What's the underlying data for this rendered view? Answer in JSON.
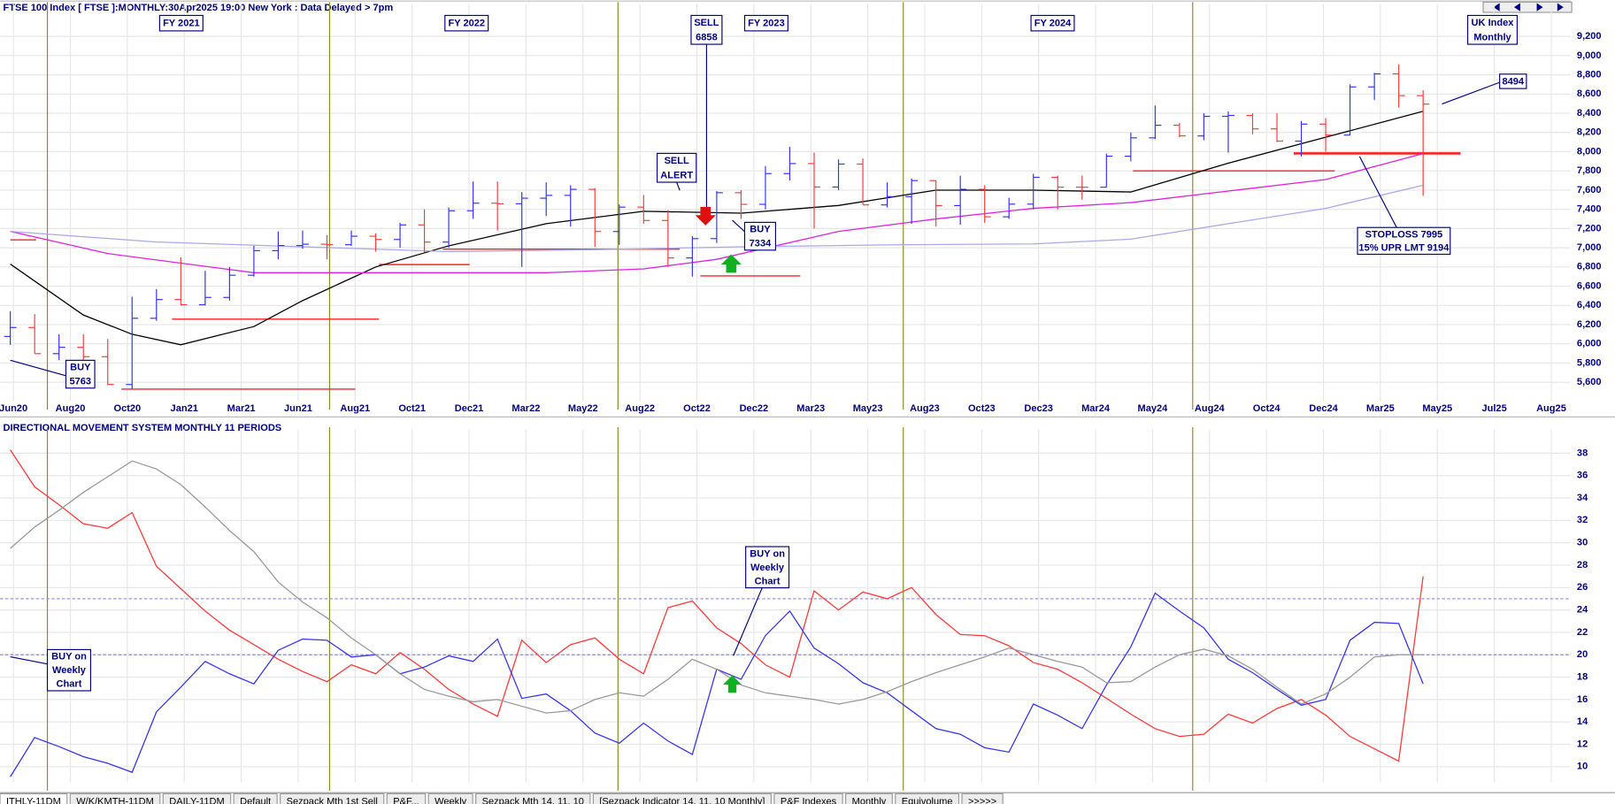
{
  "tabs": [
    "ITHLY-11DM",
    "W/K/KMTH-11DM",
    "DAILY-11DM",
    "Default",
    "Sezpack Mth 1st Sell",
    "P&F...",
    "Weekly",
    "Sezpack Mth 14, 11, 10",
    "[Sezpack Indicator 14, 11, 10 Monthly]",
    "P&F Indexes",
    "Monthly",
    "Equivolume",
    ">>>>>"
  ],
  "chart_data": [
    {
      "type": "ohlc",
      "title": "FTSE 100 Index [ FTSE ]:MONTHLY:30Apr2025 19:00 New York : Data Delayed > 7pm",
      "open": [
        6077,
        6170,
        5898,
        5964,
        5866,
        5577,
        6266,
        6461,
        6407,
        6483,
        6714,
        6970,
        7023,
        7037,
        7032,
        7120,
        7086,
        7238,
        7059,
        7385,
        7464,
        7458,
        7516,
        7545,
        7608,
        7169,
        7423,
        7284,
        6894,
        7095,
        7573,
        7452,
        7772,
        7876,
        7632,
        7871,
        7446,
        7532,
        7699,
        7439,
        7608,
        7322,
        7454,
        7733,
        7631,
        7630,
        7953,
        8144,
        8275,
        8164,
        8368,
        8377,
        8237,
        8110,
        8287,
        8173,
        8674,
        8810,
        8583
      ],
      "high": [
        6340,
        6310,
        6100,
        6100,
        6050,
        6490,
        6570,
        6900,
        6760,
        6800,
        7020,
        7170,
        7180,
        7130,
        7180,
        7150,
        7260,
        7400,
        7420,
        7690,
        7690,
        7580,
        7680,
        7650,
        7620,
        7450,
        7550,
        7390,
        7120,
        7590,
        7600,
        7850,
        8050,
        7990,
        7920,
        7930,
        7680,
        7720,
        7700,
        7750,
        7650,
        7520,
        7770,
        7750,
        7750,
        7980,
        8200,
        8480,
        8300,
        8400,
        8420,
        8400,
        8400,
        8320,
        8350,
        8700,
        8820,
        8910,
        8640
      ],
      "low": [
        5990,
        5900,
        5830,
        5770,
        5570,
        5530,
        6240,
        6400,
        6400,
        6450,
        6700,
        6880,
        6990,
        6880,
        7020,
        6960,
        7000,
        6950,
        7000,
        7300,
        7180,
        6800,
        7330,
        7220,
        7010,
        7030,
        7250,
        6800,
        6700,
        7050,
        7300,
        7400,
        7700,
        7200,
        7600,
        7450,
        7420,
        7250,
        7220,
        7240,
        7260,
        7300,
        7400,
        7400,
        7500,
        7630,
        7900,
        8130,
        8150,
        8120,
        7990,
        8180,
        8100,
        7950,
        8000,
        8170,
        8540,
        8460,
        7540
      ],
      "close": [
        6170,
        5898,
        5964,
        5866,
        5577,
        6266,
        6461,
        6407,
        6483,
        6714,
        6970,
        7023,
        7037,
        7032,
        7120,
        7086,
        7238,
        7059,
        7385,
        7464,
        7458,
        7516,
        7545,
        7608,
        7169,
        7423,
        7284,
        6894,
        7095,
        7573,
        7452,
        7772,
        7876,
        7632,
        7871,
        7446,
        7532,
        7699,
        7439,
        7608,
        7322,
        7454,
        7733,
        7631,
        7630,
        7953,
        8144,
        8275,
        8164,
        8368,
        8377,
        8237,
        8110,
        8287,
        8173,
        8674,
        8810,
        8583,
        8495
      ],
      "up_color": "#3030ff",
      "down_color": "#ff3838",
      "series": [
        {
          "color": "#000000",
          "x": [
            0,
            3,
            5,
            7,
            10,
            12,
            15,
            18,
            22,
            26,
            30,
            34,
            38,
            42,
            46,
            50,
            54,
            58
          ],
          "values": [
            6830,
            6300,
            6100,
            5990,
            6180,
            6450,
            6800,
            7020,
            7250,
            7380,
            7360,
            7440,
            7600,
            7600,
            7580,
            7880,
            8150,
            8420
          ]
        },
        {
          "color": "#e020e0",
          "x": [
            0,
            4,
            10,
            16,
            22,
            26,
            29,
            34,
            38,
            42,
            46,
            50,
            54,
            58
          ],
          "values": [
            7170,
            6940,
            6740,
            6740,
            6740,
            6780,
            6880,
            7170,
            7300,
            7410,
            7470,
            7590,
            7710,
            7980
          ]
        },
        {
          "color": "#a8a8ec",
          "x": [
            0,
            6,
            12,
            18,
            24,
            30,
            36,
            42,
            46,
            50,
            54,
            58
          ],
          "values": [
            7170,
            7060,
            7010,
            6960,
            6980,
            7010,
            7030,
            7040,
            7090,
            7250,
            7410,
            7650
          ]
        }
      ],
      "x_labels": [
        "Jun20",
        "Aug20",
        "Oct20",
        "Jan21",
        "Mar21",
        "Jun21",
        "Aug21",
        "Oct21",
        "Dec21",
        "Mar22",
        "May22",
        "Aug22",
        "Oct22",
        "Dec22",
        "Mar23",
        "May23",
        "Aug23",
        "Oct23",
        "Dec23",
        "Mar24",
        "May24",
        "Aug24",
        "Oct24",
        "Dec24",
        "Mar25",
        "May25",
        "Jul25",
        "Aug25"
      ],
      "ylim": [
        5400,
        9450
      ],
      "yticks": [
        {
          "value": 5600,
          "label": "5,600"
        },
        {
          "value": 5800,
          "label": "5,800"
        },
        {
          "value": 6000,
          "label": "6,000"
        },
        {
          "value": 6200,
          "label": "6,200"
        },
        {
          "value": 6400,
          "label": "6,400"
        },
        {
          "value": 6600,
          "label": "6,600"
        },
        {
          "value": 6800,
          "label": "6,800"
        },
        {
          "value": 7000,
          "label": "7,000"
        },
        {
          "value": 7200,
          "label": "7,200"
        },
        {
          "value": 7400,
          "label": "7,400"
        },
        {
          "value": 7600,
          "label": "7,600"
        },
        {
          "value": 7800,
          "label": "7,800"
        },
        {
          "value": 8000,
          "label": "8,000"
        },
        {
          "value": 8200,
          "label": "8,200"
        },
        {
          "value": 8400,
          "label": "8,400"
        },
        {
          "value": 8600,
          "label": "8,600"
        },
        {
          "value": 8800,
          "label": "8,800"
        },
        {
          "value": 9000,
          "label": "9,000"
        },
        {
          "value": 9200,
          "label": "9,200"
        }
      ],
      "grid": true,
      "annotations": [
        [
          "FY 2021"
        ],
        [
          "FY 2022"
        ],
        [
          "SELL",
          "6858"
        ],
        [
          "FY 2023"
        ],
        [
          "FY 2024"
        ],
        [
          "UK Index",
          "Monthly"
        ],
        [
          "SELL",
          "ALERT"
        ],
        [
          "BUY",
          "7334"
        ],
        [
          "BUY",
          "5763"
        ],
        [
          "8494"
        ],
        [
          "STOPLOSS 7995",
          "15% UPR LMT 9194"
        ]
      ]
    },
    {
      "type": "line",
      "title": "DIRECTIONAL MOVEMENT SYSTEM MONTHLY 11 PERIODS",
      "series": [
        {
          "color": "#ff3838",
          "values": [
            38.3,
            35,
            33.4,
            31.7,
            31.3,
            32.7,
            27.9,
            25.9,
            23.9,
            22.2,
            20.9,
            19.6,
            18.5,
            17.6,
            19.1,
            18.3,
            20.2,
            18.7,
            16.9,
            15.6,
            14.5,
            21.3,
            19.3,
            20.9,
            21.5,
            19.6,
            18.3,
            24.2,
            24.8,
            22.4,
            21,
            19.1,
            18,
            25.7,
            24,
            25.6,
            25,
            26,
            23.6,
            21.8,
            21.7,
            20.8,
            19.3,
            18.7,
            17.5,
            16.1,
            14.7,
            13.4,
            12.7,
            12.9,
            14.7,
            13.9,
            15.2,
            16,
            14.6,
            12.7,
            11.6,
            10.5,
            27
          ]
        },
        {
          "color": "#3434ee",
          "values": [
            9.1,
            12.6,
            11.8,
            10.9,
            10.3,
            9.5,
            14.9,
            17.1,
            19.4,
            18.3,
            17.4,
            20.4,
            21.4,
            21.3,
            19.8,
            20,
            18.3,
            18.9,
            19.9,
            19.4,
            21.4,
            16.1,
            16.5,
            15,
            13,
            12.1,
            13.9,
            12.3,
            11.1,
            18.7,
            17.8,
            21.7,
            23.9,
            20.6,
            19.2,
            17.5,
            16.6,
            15,
            13.4,
            12.9,
            11.7,
            11.3,
            15.6,
            14.6,
            13.4,
            17.3,
            20.7,
            25.5,
            23.9,
            22.4,
            19.6,
            18.4,
            16.9,
            15.5,
            16,
            21.3,
            22.9,
            22.8,
            17.4
          ]
        },
        {
          "color": "#999999",
          "values": [
            29.5,
            31.4,
            32.9,
            34.5,
            35.9,
            37.3,
            36.6,
            35.2,
            33.2,
            31.1,
            29.2,
            26.5,
            24.7,
            23.3,
            21.5,
            20,
            18.3,
            16.9,
            16.3,
            15.8,
            16,
            15.4,
            14.8,
            15,
            16,
            16.6,
            16.3,
            17.8,
            19.6,
            18.7,
            17.3,
            16.6,
            16.3,
            16,
            15.6,
            16,
            16.7,
            17.6,
            18.4,
            19.1,
            19.8,
            20.6,
            20,
            19.4,
            18.9,
            17.5,
            17.6,
            18.9,
            20,
            20.5,
            19.9,
            18.7,
            17.1,
            15.6,
            16.5,
            18,
            19.8,
            20,
            20
          ]
        }
      ],
      "ylim": [
        8.6,
        39.4
      ],
      "yticks": [
        10,
        12,
        14,
        16,
        18,
        20,
        22,
        24,
        26,
        28,
        30,
        32,
        34,
        36,
        38
      ],
      "hlines": [
        25,
        20
      ],
      "grid": true,
      "annotations": [
        [
          "BUY on",
          "Weekly",
          "Chart"
        ],
        [
          "BUY on",
          "Weekly",
          "Chart"
        ]
      ]
    }
  ]
}
